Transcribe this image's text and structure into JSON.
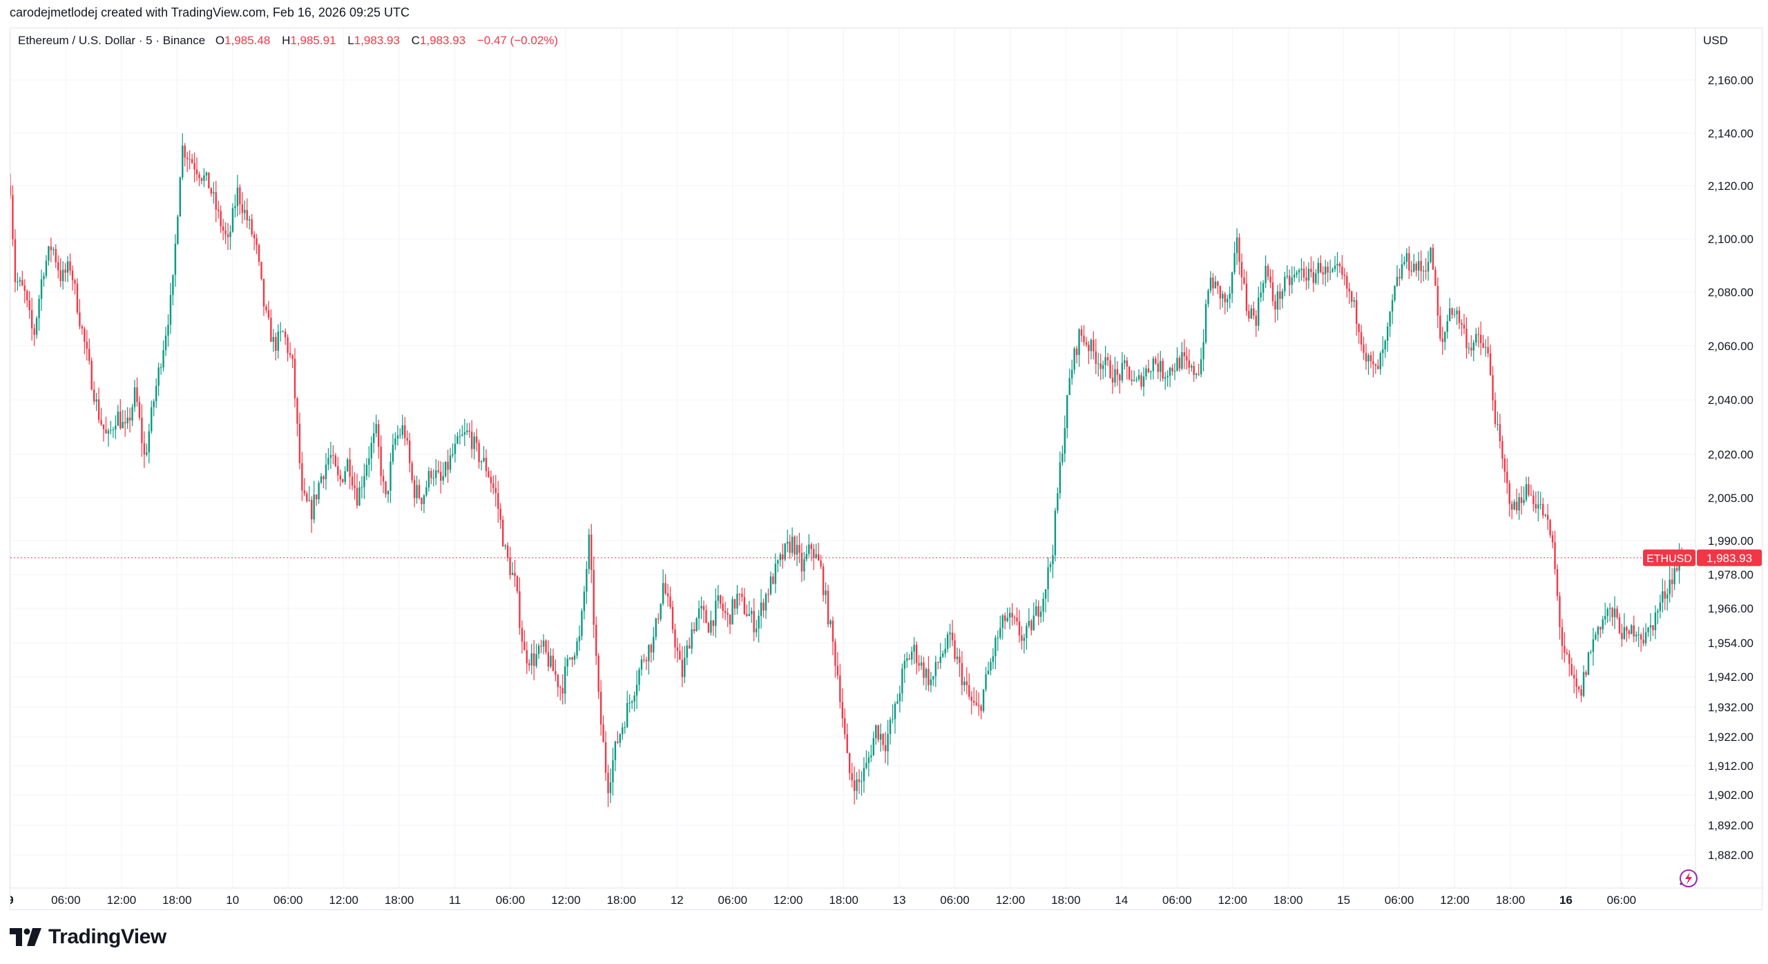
{
  "attribution": "carodejmetlodej created with TradingView.com, Feb 16, 2026 09:25 UTC",
  "legend": {
    "symbol": "Ethereum / U.S. Dollar · 5 · Binance",
    "open_label": "O",
    "open": "1,985.48",
    "high_label": "H",
    "high": "1,985.91",
    "low_label": "L",
    "low": "1,983.93",
    "close_label": "C",
    "close": "1,983.93",
    "change": "−0.47 (−0.02%)"
  },
  "currency": "USD",
  "price_tag": {
    "ticker": "ETHUSD",
    "price": "1,983.93",
    "value": 1983.93
  },
  "logo_text": "TradingView",
  "colors": {
    "up": "#089981",
    "down": "#f23645",
    "grid": "#f0f3fa",
    "text": "#131722"
  },
  "icons": [
    "tradingview-logo-icon",
    "ai-spark-icon"
  ],
  "chart_data": {
    "type": "candlestick",
    "y_ticks": [
      {
        "v": 2160,
        "label": "2,160.00"
      },
      {
        "v": 2140,
        "label": "2,140.00"
      },
      {
        "v": 2120,
        "label": "2,120.00"
      },
      {
        "v": 2100,
        "label": "2,100.00"
      },
      {
        "v": 2080,
        "label": "2,080.00"
      },
      {
        "v": 2060,
        "label": "2,060.00"
      },
      {
        "v": 2040,
        "label": "2,040.00"
      },
      {
        "v": 2020,
        "label": "2,020.00"
      },
      {
        "v": 2005,
        "label": "2,005.00"
      },
      {
        "v": 1990,
        "label": "1,990.00"
      },
      {
        "v": 1978,
        "label": "1,978.00"
      },
      {
        "v": 1966,
        "label": "1,966.00"
      },
      {
        "v": 1954,
        "label": "1,954.00"
      },
      {
        "v": 1942,
        "label": "1,942.00"
      },
      {
        "v": 1932,
        "label": "1,932.00"
      },
      {
        "v": 1922,
        "label": "1,922.00"
      },
      {
        "v": 1912,
        "label": "1,912.00"
      },
      {
        "v": 1902,
        "label": "1,902.00"
      },
      {
        "v": 1892,
        "label": "1,892.00"
      },
      {
        "v": 1882,
        "label": "1,882.00"
      }
    ],
    "x_ticks": [
      {
        "t": 0,
        "label": "9",
        "bold": true
      },
      {
        "t": 6,
        "label": "06:00"
      },
      {
        "t": 12,
        "label": "12:00"
      },
      {
        "t": 18,
        "label": "18:00"
      },
      {
        "t": 24,
        "label": "10"
      },
      {
        "t": 30,
        "label": "06:00"
      },
      {
        "t": 36,
        "label": "12:00"
      },
      {
        "t": 42,
        "label": "18:00"
      },
      {
        "t": 48,
        "label": "11"
      },
      {
        "t": 54,
        "label": "06:00"
      },
      {
        "t": 60,
        "label": "12:00"
      },
      {
        "t": 66,
        "label": "18:00"
      },
      {
        "t": 72,
        "label": "12"
      },
      {
        "t": 78,
        "label": "06:00"
      },
      {
        "t": 84,
        "label": "12:00"
      },
      {
        "t": 90,
        "label": "18:00"
      },
      {
        "t": 96,
        "label": "13"
      },
      {
        "t": 102,
        "label": "06:00"
      },
      {
        "t": 108,
        "label": "12:00"
      },
      {
        "t": 114,
        "label": "18:00"
      },
      {
        "t": 120,
        "label": "14"
      },
      {
        "t": 126,
        "label": "06:00"
      },
      {
        "t": 132,
        "label": "12:00"
      },
      {
        "t": 138,
        "label": "18:00"
      },
      {
        "t": 144,
        "label": "15"
      },
      {
        "t": 150,
        "label": "06:00"
      },
      {
        "t": 156,
        "label": "12:00"
      },
      {
        "t": 162,
        "label": "18:00"
      },
      {
        "t": 168,
        "label": "16",
        "bold": true
      },
      {
        "t": 174,
        "label": "06:00"
      }
    ],
    "series": [
      {
        "t": 0,
        "p": 2120
      },
      {
        "t": 0.5,
        "p": 2085
      },
      {
        "t": 1.5,
        "p": 2080
      },
      {
        "t": 2.5,
        "p": 2063
      },
      {
        "t": 3.5,
        "p": 2088
      },
      {
        "t": 4.5,
        "p": 2098
      },
      {
        "t": 5.5,
        "p": 2085
      },
      {
        "t": 6.5,
        "p": 2090
      },
      {
        "t": 7.5,
        "p": 2070
      },
      {
        "t": 8.5,
        "p": 2052
      },
      {
        "t": 9.5,
        "p": 2035
      },
      {
        "t": 10.5,
        "p": 2025
      },
      {
        "t": 11.5,
        "p": 2035
      },
      {
        "t": 12.5,
        "p": 2028
      },
      {
        "t": 13.5,
        "p": 2043
      },
      {
        "t": 14.5,
        "p": 2018
      },
      {
        "t": 15.5,
        "p": 2040
      },
      {
        "t": 16.5,
        "p": 2060
      },
      {
        "t": 17.5,
        "p": 2080
      },
      {
        "t": 18.5,
        "p": 2135
      },
      {
        "t": 19.5,
        "p": 2130
      },
      {
        "t": 20.5,
        "p": 2125
      },
      {
        "t": 21.5,
        "p": 2120
      },
      {
        "t": 22.5,
        "p": 2108
      },
      {
        "t": 23.5,
        "p": 2098
      },
      {
        "t": 24.5,
        "p": 2118
      },
      {
        "t": 25.5,
        "p": 2108
      },
      {
        "t": 26.5,
        "p": 2098
      },
      {
        "t": 27.5,
        "p": 2072
      },
      {
        "t": 28.5,
        "p": 2060
      },
      {
        "t": 29.5,
        "p": 2065
      },
      {
        "t": 30.5,
        "p": 2052
      },
      {
        "t": 31.5,
        "p": 2005
      },
      {
        "t": 32.5,
        "p": 2000
      },
      {
        "t": 33.5,
        "p": 2012
      },
      {
        "t": 34.5,
        "p": 2020
      },
      {
        "t": 35.5,
        "p": 2010
      },
      {
        "t": 36.5,
        "p": 2018
      },
      {
        "t": 37.5,
        "p": 2005
      },
      {
        "t": 38.5,
        "p": 2018
      },
      {
        "t": 39.5,
        "p": 2028
      },
      {
        "t": 40.5,
        "p": 2003
      },
      {
        "t": 41.5,
        "p": 2025
      },
      {
        "t": 42.5,
        "p": 2030
      },
      {
        "t": 43.5,
        "p": 2008
      },
      {
        "t": 44.5,
        "p": 2005
      },
      {
        "t": 45.5,
        "p": 2015
      },
      {
        "t": 46.5,
        "p": 2010
      },
      {
        "t": 47.5,
        "p": 2018
      },
      {
        "t": 48.5,
        "p": 2025
      },
      {
        "t": 49.5,
        "p": 2028
      },
      {
        "t": 50.5,
        "p": 2020
      },
      {
        "t": 51.5,
        "p": 2015
      },
      {
        "t": 52.5,
        "p": 2005
      },
      {
        "t": 53.5,
        "p": 1985
      },
      {
        "t": 54.5,
        "p": 1975
      },
      {
        "t": 55.5,
        "p": 1950
      },
      {
        "t": 56.5,
        "p": 1948
      },
      {
        "t": 57.5,
        "p": 1952
      },
      {
        "t": 58.5,
        "p": 1945
      },
      {
        "t": 59.5,
        "p": 1938
      },
      {
        "t": 60.5,
        "p": 1950
      },
      {
        "t": 61.5,
        "p": 1955
      },
      {
        "t": 62.5,
        "p": 1990
      },
      {
        "t": 63.5,
        "p": 1935
      },
      {
        "t": 64.5,
        "p": 1905
      },
      {
        "t": 65.5,
        "p": 1920
      },
      {
        "t": 66.5,
        "p": 1930
      },
      {
        "t": 67.5,
        "p": 1940
      },
      {
        "t": 68.5,
        "p": 1950
      },
      {
        "t": 69.5,
        "p": 1955
      },
      {
        "t": 70.5,
        "p": 1975
      },
      {
        "t": 71.5,
        "p": 1960
      },
      {
        "t": 72.5,
        "p": 1942
      },
      {
        "t": 73.5,
        "p": 1958
      },
      {
        "t": 74.5,
        "p": 1965
      },
      {
        "t": 75.5,
        "p": 1960
      },
      {
        "t": 76.5,
        "p": 1968
      },
      {
        "t": 77.5,
        "p": 1962
      },
      {
        "t": 78.5,
        "p": 1970
      },
      {
        "t": 79.5,
        "p": 1965
      },
      {
        "t": 80.5,
        "p": 1960
      },
      {
        "t": 81.5,
        "p": 1970
      },
      {
        "t": 82.5,
        "p": 1978
      },
      {
        "t": 83.5,
        "p": 1985
      },
      {
        "t": 84.5,
        "p": 1990
      },
      {
        "t": 85.5,
        "p": 1980
      },
      {
        "t": 86.5,
        "p": 1988
      },
      {
        "t": 87.5,
        "p": 1980
      },
      {
        "t": 88.5,
        "p": 1960
      },
      {
        "t": 89.5,
        "p": 1940
      },
      {
        "t": 90.5,
        "p": 1910
      },
      {
        "t": 91.5,
        "p": 1905
      },
      {
        "t": 92.5,
        "p": 1912
      },
      {
        "t": 93.5,
        "p": 1925
      },
      {
        "t": 94.5,
        "p": 1920
      },
      {
        "t": 95.5,
        "p": 1930
      },
      {
        "t": 96.5,
        "p": 1945
      },
      {
        "t": 97.5,
        "p": 1952
      },
      {
        "t": 98.5,
        "p": 1945
      },
      {
        "t": 99.5,
        "p": 1940
      },
      {
        "t": 100.5,
        "p": 1950
      },
      {
        "t": 101.5,
        "p": 1955
      },
      {
        "t": 102.5,
        "p": 1945
      },
      {
        "t": 103.5,
        "p": 1935
      },
      {
        "t": 104.5,
        "p": 1930
      },
      {
        "t": 105.5,
        "p": 1942
      },
      {
        "t": 106.5,
        "p": 1955
      },
      {
        "t": 107.5,
        "p": 1963
      },
      {
        "t": 108.5,
        "p": 1960
      },
      {
        "t": 109.5,
        "p": 1955
      },
      {
        "t": 110.5,
        "p": 1962
      },
      {
        "t": 111.5,
        "p": 1970
      },
      {
        "t": 112.5,
        "p": 1985
      },
      {
        "t": 113.5,
        "p": 2020
      },
      {
        "t": 114.5,
        "p": 2050
      },
      {
        "t": 115.5,
        "p": 2065
      },
      {
        "t": 116.5,
        "p": 2060
      },
      {
        "t": 117.5,
        "p": 2055
      },
      {
        "t": 118.5,
        "p": 2052
      },
      {
        "t": 119.5,
        "p": 2048
      },
      {
        "t": 120.5,
        "p": 2052
      },
      {
        "t": 121.5,
        "p": 2045
      },
      {
        "t": 122.5,
        "p": 2050
      },
      {
        "t": 123.5,
        "p": 2055
      },
      {
        "t": 124.5,
        "p": 2050
      },
      {
        "t": 125.5,
        "p": 2052
      },
      {
        "t": 126.5,
        "p": 2055
      },
      {
        "t": 127.5,
        "p": 2050
      },
      {
        "t": 128.5,
        "p": 2052
      },
      {
        "t": 129.5,
        "p": 2085
      },
      {
        "t": 130.5,
        "p": 2080
      },
      {
        "t": 131.5,
        "p": 2075
      },
      {
        "t": 132.5,
        "p": 2098
      },
      {
        "t": 133.5,
        "p": 2075
      },
      {
        "t": 134.5,
        "p": 2070
      },
      {
        "t": 135.5,
        "p": 2090
      },
      {
        "t": 136.5,
        "p": 2075
      },
      {
        "t": 137.5,
        "p": 2082
      },
      {
        "t": 138.5,
        "p": 2085
      },
      {
        "t": 139.5,
        "p": 2088
      },
      {
        "t": 140.5,
        "p": 2085
      },
      {
        "t": 141.5,
        "p": 2090
      },
      {
        "t": 142.5,
        "p": 2085
      },
      {
        "t": 143.5,
        "p": 2088
      },
      {
        "t": 144.5,
        "p": 2080
      },
      {
        "t": 145.5,
        "p": 2070
      },
      {
        "t": 146.5,
        "p": 2055
      },
      {
        "t": 147.5,
        "p": 2050
      },
      {
        "t": 148.5,
        "p": 2060
      },
      {
        "t": 149.5,
        "p": 2080
      },
      {
        "t": 150.5,
        "p": 2092
      },
      {
        "t": 151.5,
        "p": 2090
      },
      {
        "t": 152.5,
        "p": 2088
      },
      {
        "t": 153.5,
        "p": 2095
      },
      {
        "t": 154.5,
        "p": 2058
      },
      {
        "t": 155.5,
        "p": 2075
      },
      {
        "t": 156.5,
        "p": 2070
      },
      {
        "t": 157.5,
        "p": 2060
      },
      {
        "t": 158.5,
        "p": 2062
      },
      {
        "t": 159.5,
        "p": 2058
      },
      {
        "t": 160.5,
        "p": 2030
      },
      {
        "t": 161.5,
        "p": 2010
      },
      {
        "t": 162.5,
        "p": 2000
      },
      {
        "t": 163.5,
        "p": 2008
      },
      {
        "t": 164.5,
        "p": 2005
      },
      {
        "t": 165.5,
        "p": 2000
      },
      {
        "t": 166.5,
        "p": 1990
      },
      {
        "t": 167.5,
        "p": 1955
      },
      {
        "t": 168.5,
        "p": 1942
      },
      {
        "t": 169.5,
        "p": 1935
      },
      {
        "t": 170.5,
        "p": 1950
      },
      {
        "t": 171.5,
        "p": 1960
      },
      {
        "t": 172.5,
        "p": 1965
      },
      {
        "t": 173.5,
        "p": 1962
      },
      {
        "t": 174.5,
        "p": 1955
      },
      {
        "t": 175.5,
        "p": 1960
      },
      {
        "t": 176.5,
        "p": 1955
      },
      {
        "t": 177.5,
        "p": 1962
      },
      {
        "t": 178.5,
        "p": 1970
      },
      {
        "t": 179.5,
        "p": 1978
      },
      {
        "t": 180.5,
        "p": 1984
      }
    ]
  }
}
